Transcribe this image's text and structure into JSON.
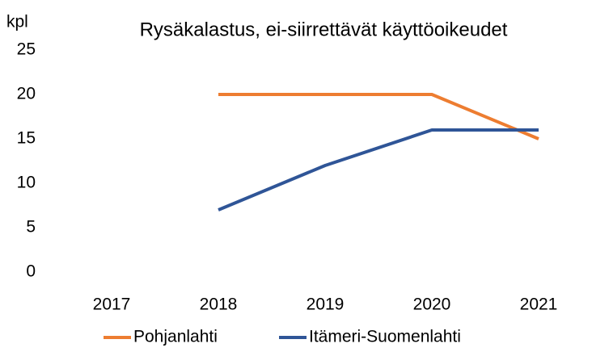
{
  "chart_data": {
    "type": "line",
    "title": "Rysäkalastus, ei-siirrettävät käyttöoikeudet",
    "ylabel": "kpl",
    "categories": [
      "2017",
      "2018",
      "2019",
      "2020",
      "2021"
    ],
    "series": [
      {
        "name": "Pohjanlahti",
        "color": "#ed7d31",
        "values": [
          null,
          20,
          20,
          20,
          15
        ]
      },
      {
        "name": "Itämeri-Suomenlahti",
        "color": "#2f5597",
        "values": [
          null,
          7,
          12,
          16,
          16
        ]
      }
    ],
    "ylim": [
      0,
      25
    ],
    "yticks": [
      0,
      5,
      10,
      15,
      20,
      25
    ],
    "grid": false,
    "legend": "bottom"
  }
}
